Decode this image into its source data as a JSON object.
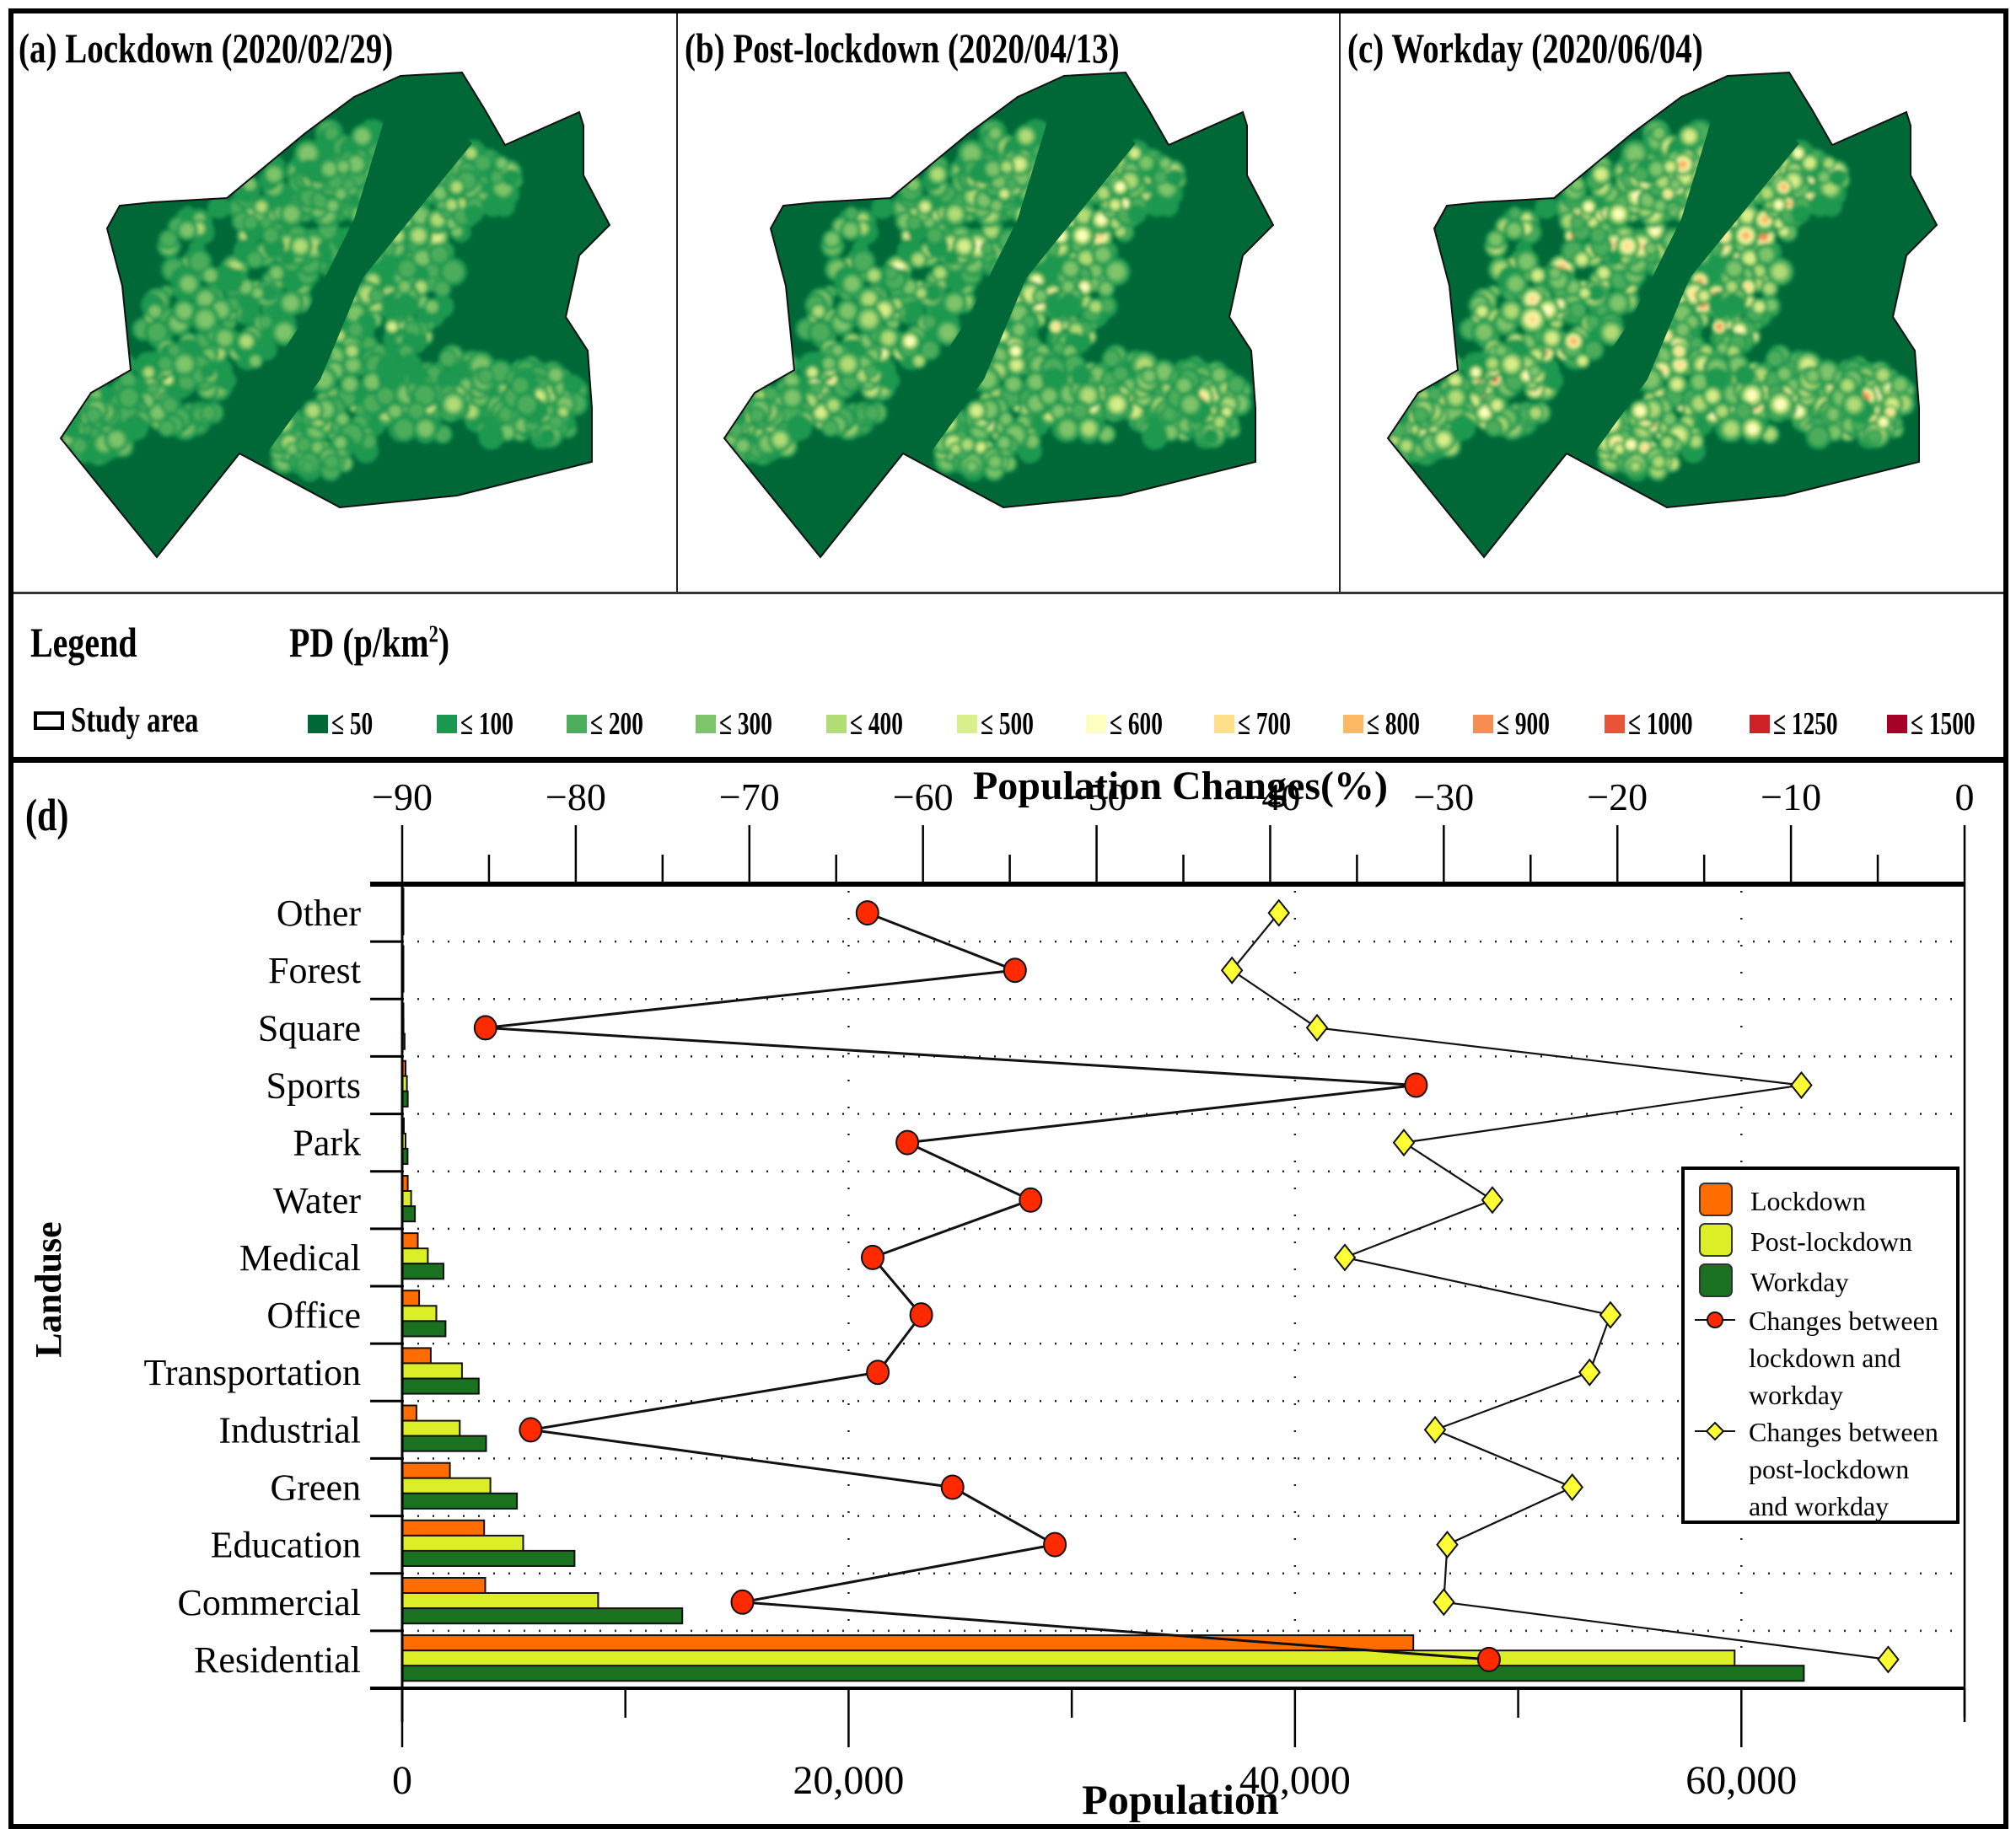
{
  "figure": {
    "panels": [
      {
        "id": "a",
        "title": "(a) Lockdown (2020/02/29)",
        "intensity": 0.15
      },
      {
        "id": "b",
        "title": "(b) Post-lockdown (2020/04/13)",
        "intensity": 0.55
      },
      {
        "id": "c",
        "title": "(c) Workday (2020/06/04)",
        "intensity": 1.0
      }
    ],
    "legend": {
      "heading": "Legend",
      "pd_heading": "PD (p/km",
      "pd_superscript": "2",
      "pd_close": ")",
      "study_area_label": "Study area",
      "classes": [
        {
          "label": "≤ 50",
          "color": "#006837"
        },
        {
          "label": "≤ 100",
          "color": "#1a9850"
        },
        {
          "label": "≤ 200",
          "color": "#4cad5c"
        },
        {
          "label": "≤ 300",
          "color": "#7ec46a"
        },
        {
          "label": "≤ 400",
          "color": "#b2dc74"
        },
        {
          "label": "≤ 500",
          "color": "#d9ef8b"
        },
        {
          "label": "≤ 600",
          "color": "#ffffbf"
        },
        {
          "label": "≤ 700",
          "color": "#fee08b"
        },
        {
          "label": "≤ 800",
          "color": "#fdb863"
        },
        {
          "label": "≤ 900",
          "color": "#f88d52"
        },
        {
          "label": "≤ 1000",
          "color": "#e75437"
        },
        {
          "label": "≤ 1250",
          "color": "#cf2226"
        },
        {
          "label": "≤ 1500",
          "color": "#a50026"
        }
      ]
    }
  },
  "chart_data": {
    "type": "bar",
    "panel_label": "(d)",
    "orientation": "horizontal",
    "title_top_axis": "Population Changes(%)",
    "xlabel": "Population",
    "ylabel": "Landuse",
    "grid": true,
    "legend_position": "right",
    "categories": [
      "Other",
      "Forest",
      "Square",
      "Sports",
      "Park",
      "Water",
      "Medical",
      "Office",
      "Transportation",
      "Industrial",
      "Green",
      "Education",
      "Commercial",
      "Residential"
    ],
    "bottom_axis": {
      "range": [
        0,
        70000
      ],
      "ticks": [
        0,
        20000,
        40000,
        60000
      ],
      "tick_labels": [
        "0",
        "20,000",
        "40,000",
        "60,000"
      ],
      "minor_step": 10000
    },
    "top_axis": {
      "range": [
        -90,
        0
      ],
      "ticks": [
        -90,
        -80,
        -70,
        -60,
        -50,
        -40,
        -30,
        -20,
        -10,
        0
      ],
      "tick_labels": [
        "−90",
        "−80",
        "−70",
        "−60",
        "−50",
        "−40",
        "−30",
        "−20",
        "−10",
        "0"
      ],
      "minor_step": 5
    },
    "series": [
      {
        "name": "Lockdown",
        "kind": "bar",
        "axis": "bottom",
        "color": "#ff6c00",
        "values": [
          30,
          30,
          40,
          150,
          75,
          250,
          700,
          760,
          1280,
          640,
          2140,
          3670,
          3720,
          45300
        ]
      },
      {
        "name": "Post-lockdown",
        "kind": "bar",
        "axis": "bottom",
        "color": "#dcef26",
        "values": [
          30,
          35,
          60,
          210,
          150,
          400,
          1150,
          1530,
          2680,
          2580,
          3950,
          5420,
          8780,
          59700
        ]
      },
      {
        "name": "Workday",
        "kind": "bar",
        "axis": "bottom",
        "color": "#1a7220",
        "values": [
          40,
          45,
          110,
          250,
          240,
          570,
          1850,
          1940,
          3430,
          3760,
          5140,
          7720,
          12550,
          62800
        ]
      },
      {
        "name": "Changes between lockdown and workday",
        "kind": "line",
        "axis": "top",
        "color": "#ff2a00",
        "marker": "circle",
        "values": [
          -63.2,
          -54.7,
          -85.2,
          -31.6,
          -60.9,
          -53.8,
          -62.9,
          -60.1,
          -62.6,
          -82.6,
          -58.3,
          -52.4,
          -70.4,
          -27.4
        ]
      },
      {
        "name": "Changes between post-lockdown and workday",
        "kind": "line",
        "axis": "top",
        "color": "#ffff33",
        "marker": "diamond",
        "values": [
          -39.5,
          -42.2,
          -37.3,
          -9.4,
          -32.3,
          -27.2,
          -35.7,
          -20.4,
          -21.6,
          -30.5,
          -22.6,
          -29.8,
          -30.0,
          -4.4
        ]
      }
    ],
    "legend_entries": [
      {
        "label": "Lockdown",
        "type": "box",
        "color": "#ff6c00"
      },
      {
        "label": "Post-lockdown",
        "type": "box",
        "color": "#dcef26"
      },
      {
        "label": "Workday",
        "type": "box",
        "color": "#1a7220"
      },
      {
        "label_lines": [
          "Changes between",
          "lockdown and",
          "workday"
        ],
        "type": "circle",
        "color": "#ff2a00"
      },
      {
        "label_lines": [
          "Changes between",
          "post-lockdown",
          "and workday"
        ],
        "type": "diamond",
        "color": "#ffff33"
      }
    ]
  }
}
